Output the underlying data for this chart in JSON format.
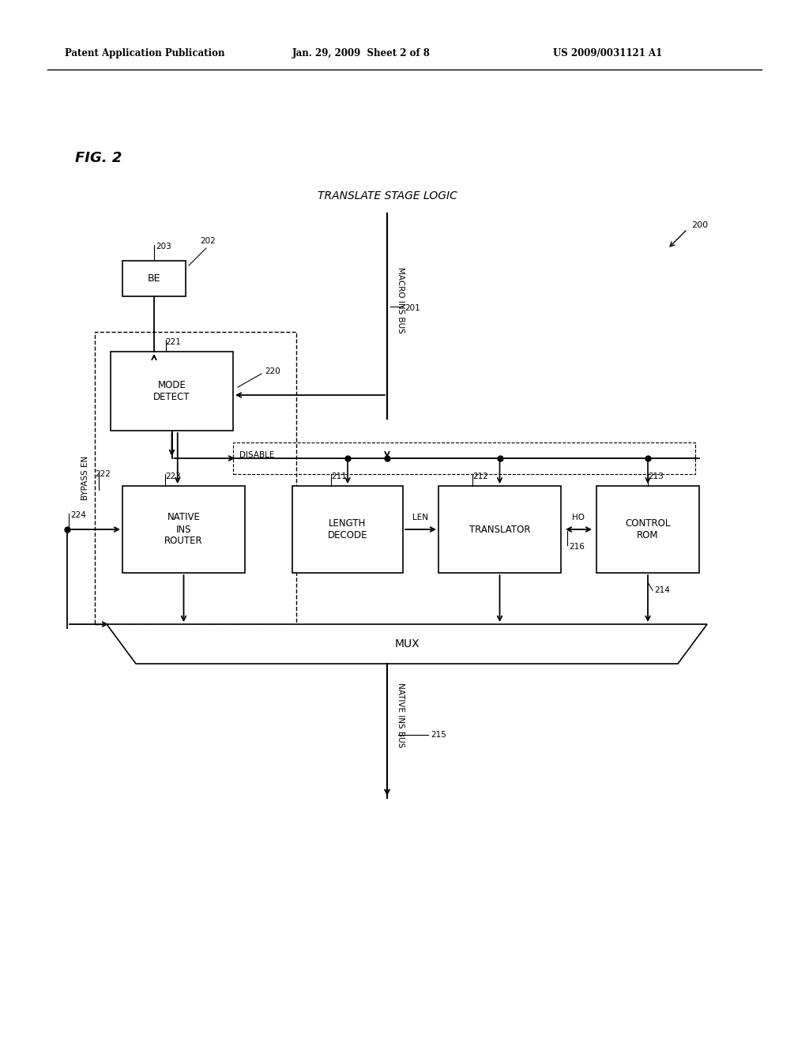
{
  "bg_color": "#ffffff",
  "header_left": "Patent Application Publication",
  "header_mid": "Jan. 29, 2009  Sheet 2 of 8",
  "header_right": "US 2009/0031121 A1",
  "fig_label": "FIG. 2",
  "title": "TRANSLATE STAGE LOGIC",
  "ref_200": "200",
  "ref_201": "201",
  "ref_202": "202",
  "ref_203": "203",
  "ref_211": "211",
  "ref_212": "212",
  "ref_213": "213",
  "ref_214": "214",
  "ref_215": "215",
  "ref_216": "216",
  "ref_220": "220",
  "ref_221": "221",
  "ref_222": "222",
  "ref_223": "223",
  "ref_224": "224",
  "box_be_label": "BE",
  "box_mode_label": "MODE\nDETECT",
  "box_native_label": "NATIVE\nINS\nROUTER",
  "box_length_label": "LENGTH\nDECODE",
  "box_translator_label": "TRANSLATOR",
  "box_control_label": "CONTROL\nROM",
  "box_mux_label": "MUX",
  "label_macro_ins_bus": "MACRO INS BUS",
  "label_native_ins_bus": "NATIVE INS BUS",
  "label_bypass_en": "BYPASS EN",
  "label_disable": "DISABLE",
  "label_len": "LEN",
  "label_ho": "HO"
}
